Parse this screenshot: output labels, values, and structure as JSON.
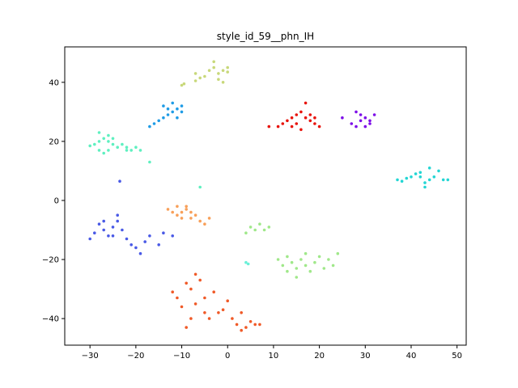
{
  "chart_data": {
    "type": "scatter",
    "title": "style_id_59__phn_IH",
    "xlabel": "",
    "ylabel": "",
    "xlim": [
      -35.5,
      52
    ],
    "ylim": [
      -49,
      52
    ],
    "xticks": [
      -30,
      -20,
      -10,
      0,
      10,
      20,
      30,
      40,
      50
    ],
    "yticks": [
      -40,
      -20,
      0,
      20,
      40
    ],
    "grid": false,
    "legend": "none",
    "series": [
      {
        "color": "#c8d87a",
        "points": [
          [
            -10,
            39
          ],
          [
            -9.5,
            39.5
          ],
          [
            -7,
            40.5
          ],
          [
            -6,
            41.5
          ],
          [
            -7,
            43
          ],
          [
            -5,
            42
          ],
          [
            -4,
            44
          ],
          [
            -3,
            45
          ],
          [
            -2,
            43
          ],
          [
            -1,
            44
          ],
          [
            0,
            45
          ],
          [
            -2,
            41
          ],
          [
            -1,
            40
          ],
          [
            0,
            43.5
          ],
          [
            -3,
            47
          ]
        ]
      },
      {
        "color": "#1f9ce6",
        "points": [
          [
            -17,
            25
          ],
          [
            -16,
            26
          ],
          [
            -15,
            27
          ],
          [
            -14,
            28
          ],
          [
            -13,
            29
          ],
          [
            -12,
            30
          ],
          [
            -11,
            31
          ],
          [
            -10,
            32
          ],
          [
            -12,
            33
          ],
          [
            -11,
            28
          ],
          [
            -10,
            30
          ],
          [
            -13,
            31
          ],
          [
            -14,
            32
          ]
        ]
      },
      {
        "color": "#5ff0c0",
        "points": [
          [
            -30,
            18.5
          ],
          [
            -29,
            19
          ],
          [
            -28,
            20
          ],
          [
            -27,
            21
          ],
          [
            -26,
            22
          ],
          [
            -25,
            21
          ],
          [
            -28,
            17
          ],
          [
            -27,
            16
          ],
          [
            -26,
            17
          ],
          [
            -24,
            18
          ],
          [
            -23,
            19
          ],
          [
            -22,
            18
          ],
          [
            -21,
            17
          ],
          [
            -20,
            18
          ],
          [
            -28,
            23
          ],
          [
            -26,
            20
          ],
          [
            -25,
            19
          ],
          [
            -22,
            17
          ],
          [
            -19,
            17
          ],
          [
            -17,
            13
          ],
          [
            -6,
            4.5
          ]
        ]
      },
      {
        "color": "#e8140c",
        "points": [
          [
            9,
            25
          ],
          [
            11,
            25
          ],
          [
            12,
            26
          ],
          [
            13,
            27
          ],
          [
            14,
            28
          ],
          [
            15,
            29
          ],
          [
            16,
            30
          ],
          [
            17,
            28
          ],
          [
            18,
            27
          ],
          [
            19,
            26
          ],
          [
            20,
            25
          ],
          [
            17,
            33
          ],
          [
            16,
            24
          ],
          [
            15,
            26
          ],
          [
            14,
            25
          ],
          [
            18,
            29
          ],
          [
            19,
            28
          ]
        ]
      },
      {
        "color": "#7d0ee8",
        "points": [
          [
            25,
            28
          ],
          [
            27,
            26
          ],
          [
            28,
            25
          ],
          [
            29,
            27
          ],
          [
            30,
            28
          ],
          [
            31,
            26
          ],
          [
            32,
            29
          ],
          [
            30,
            25
          ],
          [
            29,
            29
          ],
          [
            28,
            30
          ],
          [
            31,
            27
          ]
        ]
      },
      {
        "color": "#24d6d4",
        "points": [
          [
            37,
            7
          ],
          [
            38,
            6.5
          ],
          [
            39,
            7.5
          ],
          [
            40,
            8
          ],
          [
            41,
            9
          ],
          [
            42,
            8
          ],
          [
            43,
            6
          ],
          [
            44,
            7
          ],
          [
            45,
            8
          ],
          [
            46,
            10
          ],
          [
            47,
            7
          ],
          [
            48,
            7
          ],
          [
            43,
            4.5
          ],
          [
            44,
            11
          ],
          [
            42,
            9.5
          ]
        ]
      },
      {
        "color": "#4a5ae6",
        "points": [
          [
            -30,
            -13
          ],
          [
            -29,
            -11
          ],
          [
            -28,
            -8
          ],
          [
            -27,
            -10
          ],
          [
            -26,
            -12
          ],
          [
            -25,
            -9
          ],
          [
            -24,
            -7
          ],
          [
            -23,
            -10
          ],
          [
            -22,
            -13
          ],
          [
            -21,
            -15
          ],
          [
            -20,
            -16
          ],
          [
            -19,
            -18
          ],
          [
            -18,
            -14
          ],
          [
            -17,
            -12
          ],
          [
            -15,
            -15
          ],
          [
            -14,
            -11
          ],
          [
            -12,
            -12
          ],
          [
            -24,
            -5
          ],
          [
            -27,
            -7
          ],
          [
            -23.5,
            6.5
          ],
          [
            -25,
            -12
          ]
        ]
      },
      {
        "color": "#f8a05a",
        "points": [
          [
            -13,
            -3
          ],
          [
            -12,
            -4
          ],
          [
            -11,
            -5
          ],
          [
            -10,
            -6
          ],
          [
            -9,
            -3
          ],
          [
            -8,
            -4
          ],
          [
            -7,
            -5
          ],
          [
            -6,
            -7
          ],
          [
            -5,
            -8
          ],
          [
            -4,
            -6
          ],
          [
            -9,
            -2
          ],
          [
            -10,
            -4
          ],
          [
            -11,
            -2
          ],
          [
            -8,
            -6
          ]
        ]
      },
      {
        "color": "#a0e88a",
        "points": [
          [
            4,
            -11
          ],
          [
            5,
            -9
          ],
          [
            6,
            -10
          ],
          [
            7,
            -8
          ],
          [
            8,
            -10
          ],
          [
            9,
            -9
          ],
          [
            11,
            -20
          ],
          [
            12,
            -22
          ],
          [
            13,
            -19
          ],
          [
            14,
            -21
          ],
          [
            15,
            -23
          ],
          [
            16,
            -20
          ],
          [
            17,
            -22
          ],
          [
            18,
            -24
          ],
          [
            19,
            -21
          ],
          [
            20,
            -19
          ],
          [
            21,
            -23
          ],
          [
            22,
            -20
          ],
          [
            23,
            -22
          ],
          [
            24,
            -18
          ],
          [
            15,
            -26
          ],
          [
            17,
            -18
          ],
          [
            13,
            -24
          ]
        ]
      },
      {
        "color": "#6bf0d8",
        "points": [
          [
            4,
            -21
          ],
          [
            4.5,
            -21.5
          ]
        ]
      },
      {
        "color": "#f05a28",
        "points": [
          [
            -12,
            -31
          ],
          [
            -11,
            -33
          ],
          [
            -10,
            -36
          ],
          [
            -9,
            -28
          ],
          [
            -8,
            -30
          ],
          [
            -7,
            -35
          ],
          [
            -6,
            -27
          ],
          [
            -5,
            -38
          ],
          [
            -4,
            -40
          ],
          [
            -3,
            -31
          ],
          [
            -2,
            -38
          ],
          [
            -1,
            -37
          ],
          [
            0,
            -34
          ],
          [
            1,
            -40
          ],
          [
            2,
            -42
          ],
          [
            3,
            -44
          ],
          [
            4,
            -43
          ],
          [
            5,
            -41
          ],
          [
            6,
            -42
          ],
          [
            7,
            -42
          ],
          [
            -9,
            -43
          ],
          [
            -8,
            -40
          ],
          [
            -7,
            -25
          ],
          [
            -5,
            -33
          ],
          [
            3,
            -38
          ]
        ]
      }
    ]
  }
}
